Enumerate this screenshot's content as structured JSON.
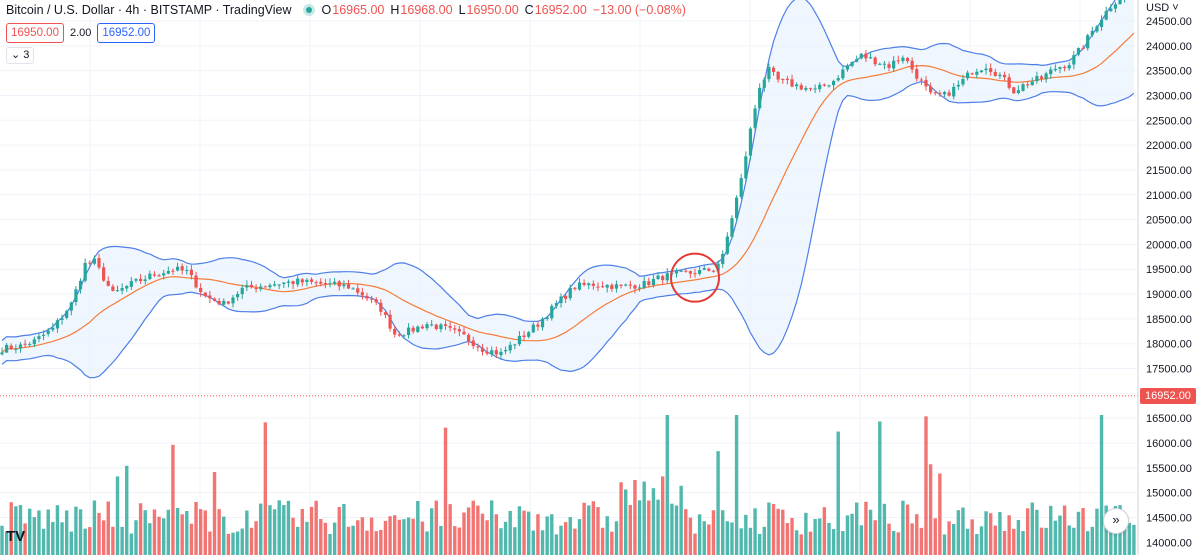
{
  "header": {
    "title": "Bitcoin / U.S. Dollar · 4h · BITSTAMP · TradingView",
    "open_label": "O",
    "open": "16965.00",
    "high_label": "H",
    "high": "16968.00",
    "low_label": "L",
    "low": "16950.00",
    "close_label": "C",
    "close": "16952.00",
    "change": "−13.00 (−0.08%)"
  },
  "trade": {
    "sell_price": "16950.00",
    "spread": "2.00",
    "buy_price": "16952.00"
  },
  "indicators_toggle": "3",
  "currency": "USD",
  "last_price_badge": "16952.00",
  "scroll_icon": "double-chevron-right-icon",
  "logo_icon": "tradingview-logo-icon",
  "chart_data": {
    "type": "candlestick",
    "timeframe": "4h",
    "yaxis": {
      "range": [
        13820,
        25000
      ],
      "ticks": [
        14000,
        14500,
        15000,
        15500,
        16000,
        16500,
        17000,
        17500,
        18000,
        18500,
        19000,
        19500,
        20000,
        20500,
        21000,
        21500,
        22000,
        22500,
        23000,
        23500,
        24000,
        24500
      ],
      "tick_labels": [
        "14000.00",
        "14500.00",
        "15000.00",
        "15500.00",
        "16000.00",
        "16500.00",
        "17000.00",
        "17500.00",
        "18000.00",
        "18500.00",
        "19000.00",
        "19500.00",
        "20000.00",
        "20500.00",
        "21000.00",
        "21500.00",
        "22000.00",
        "22500.00",
        "23000.00",
        "23500.00",
        "24000.00",
        "24500.00"
      ]
    },
    "last_price": 16952,
    "colors": {
      "up": "#26a69a",
      "down": "#ef5350",
      "ma": "#f57c3a",
      "band": "#4e7fe8",
      "band_fill": "#e8f2fd",
      "highlight": "#e53935",
      "last_line": "#ef5350"
    },
    "anchors": [
      [
        0,
        17900
      ],
      [
        4,
        17950
      ],
      [
        7,
        18050
      ],
      [
        11,
        18300
      ],
      [
        15,
        18800
      ],
      [
        18,
        19600
      ],
      [
        20,
        19650
      ],
      [
        24,
        19000
      ],
      [
        28,
        19200
      ],
      [
        33,
        19400
      ],
      [
        37,
        19500
      ],
      [
        40,
        19450
      ],
      [
        44,
        18950
      ],
      [
        48,
        18800
      ],
      [
        52,
        19100
      ],
      [
        58,
        19200
      ],
      [
        64,
        19250
      ],
      [
        70,
        19200
      ],
      [
        75,
        19150
      ],
      [
        78,
        19000
      ],
      [
        82,
        18700
      ],
      [
        85,
        18200
      ],
      [
        88,
        18250
      ],
      [
        92,
        18400
      ],
      [
        96,
        18300
      ],
      [
        100,
        18150
      ],
      [
        104,
        17900
      ],
      [
        108,
        17800
      ],
      [
        112,
        18100
      ],
      [
        116,
        18400
      ],
      [
        120,
        18800
      ],
      [
        124,
        19150
      ],
      [
        128,
        19200
      ],
      [
        134,
        19150
      ],
      [
        139,
        19200
      ],
      [
        143,
        19350
      ],
      [
        147,
        19400
      ],
      [
        151,
        19450
      ],
      [
        154,
        19500
      ],
      [
        156,
        19750
      ],
      [
        158,
        20550
      ],
      [
        160,
        21300
      ],
      [
        162,
        22300
      ],
      [
        164,
        23200
      ],
      [
        166,
        23500
      ],
      [
        168,
        23300
      ],
      [
        172,
        23200
      ],
      [
        176,
        23100
      ],
      [
        180,
        23300
      ],
      [
        183,
        23600
      ],
      [
        186,
        23800
      ],
      [
        189,
        23700
      ],
      [
        192,
        23600
      ],
      [
        195,
        23800
      ],
      [
        198,
        23400
      ],
      [
        201,
        23000
      ],
      [
        204,
        23000
      ],
      [
        207,
        23200
      ],
      [
        210,
        23500
      ],
      [
        213,
        23600
      ],
      [
        216,
        23400
      ],
      [
        219,
        23100
      ],
      [
        222,
        23250
      ],
      [
        225,
        23350
      ],
      [
        228,
        23550
      ],
      [
        231,
        23650
      ],
      [
        234,
        24000
      ],
      [
        237,
        24450
      ],
      [
        240,
        24800
      ],
      [
        243,
        25100
      ],
      [
        245,
        25200
      ]
    ],
    "circle_annotation": {
      "candle_index": 150,
      "price": 19330
    }
  }
}
